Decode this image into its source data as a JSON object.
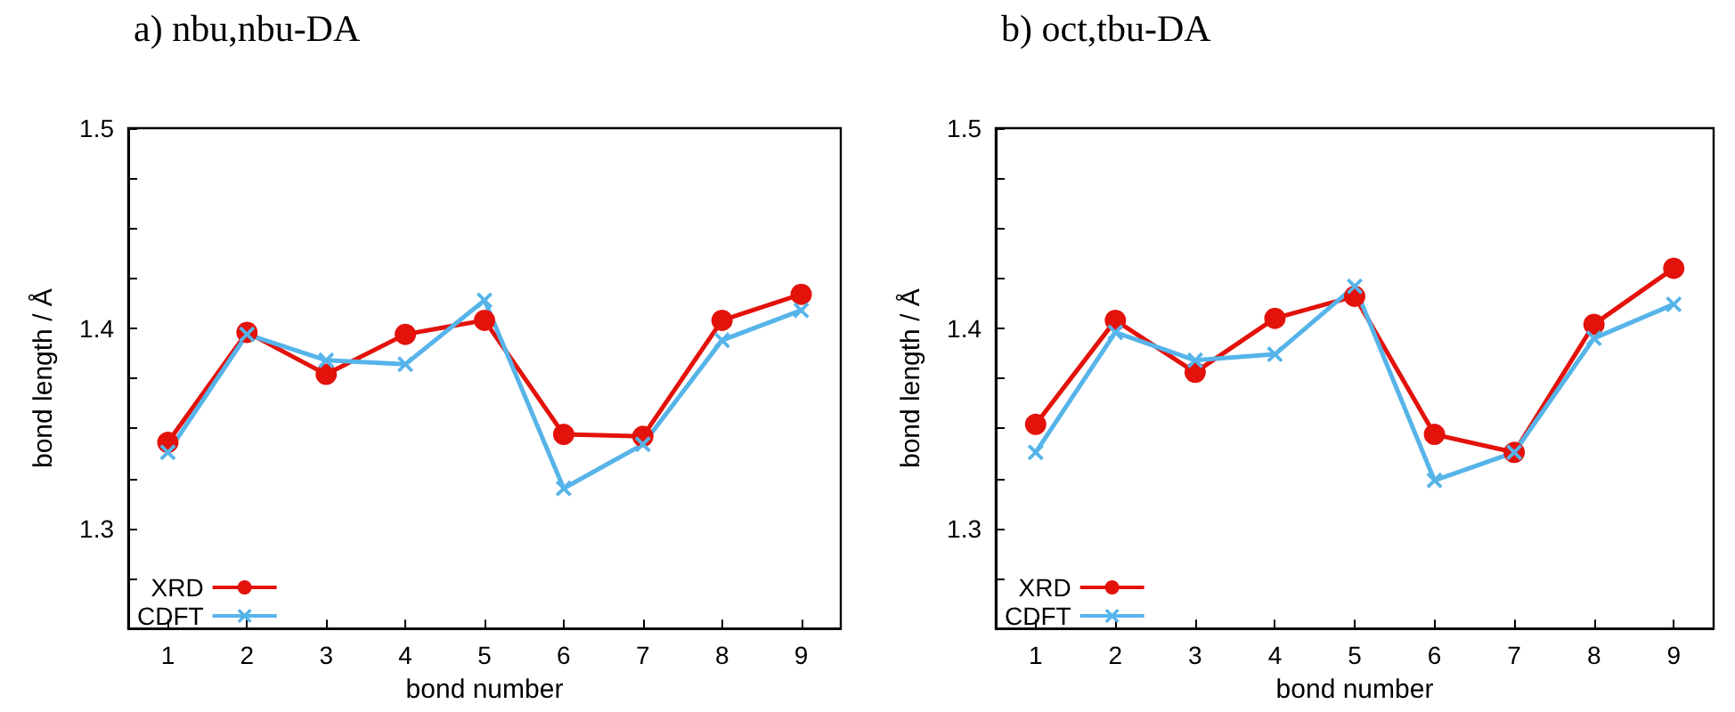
{
  "chart_data": [
    {
      "type": "line",
      "title": "a) nbu,nbu-DA",
      "xlabel": "bond number",
      "ylabel": "bond length / Å",
      "x": [
        1,
        2,
        3,
        4,
        5,
        6,
        7,
        8,
        9
      ],
      "xlim": [
        0.5,
        9.5
      ],
      "xticks": [
        1,
        2,
        3,
        4,
        5,
        6,
        7,
        8,
        9
      ],
      "ylim": [
        1.25,
        1.5
      ],
      "yticks": [
        {
          "value": 1.275,
          "label": null
        },
        1.3,
        {
          "value": 1.325,
          "label": null
        },
        {
          "value": 1.35,
          "label": null
        },
        {
          "value": 1.375,
          "label": null
        },
        1.4,
        {
          "value": 1.425,
          "label": null
        },
        {
          "value": 1.45,
          "label": null
        },
        {
          "value": 1.475,
          "label": null
        },
        1.5
      ],
      "grid": false,
      "legend": "bottom left",
      "series": [
        {
          "name": "XRD",
          "color": "#e3120b",
          "marker": "circle",
          "values": [
            1.343,
            1.398,
            1.377,
            1.397,
            1.404,
            1.347,
            1.346,
            1.404,
            1.417
          ]
        },
        {
          "name": "CDFT",
          "color": "#56b4e9",
          "marker": "cross",
          "values": [
            1.338,
            1.397,
            1.384,
            1.382,
            1.414,
            1.32,
            1.342,
            1.394,
            1.409
          ]
        }
      ]
    },
    {
      "type": "line",
      "title": "b) oct,tbu-DA",
      "xlabel": "bond number",
      "ylabel": "bond length / Å",
      "x": [
        1,
        2,
        3,
        4,
        5,
        6,
        7,
        8,
        9
      ],
      "xlim": [
        0.5,
        9.5
      ],
      "xticks": [
        1,
        2,
        3,
        4,
        5,
        6,
        7,
        8,
        9
      ],
      "ylim": [
        1.25,
        1.5
      ],
      "yticks": [
        {
          "value": 1.275,
          "label": null
        },
        1.3,
        {
          "value": 1.325,
          "label": null
        },
        {
          "value": 1.35,
          "label": null
        },
        {
          "value": 1.375,
          "label": null
        },
        1.4,
        {
          "value": 1.425,
          "label": null
        },
        {
          "value": 1.45,
          "label": null
        },
        {
          "value": 1.475,
          "label": null
        },
        1.5
      ],
      "grid": false,
      "legend": "bottom left",
      "series": [
        {
          "name": "XRD",
          "color": "#e3120b",
          "marker": "circle",
          "values": [
            1.352,
            1.404,
            1.378,
            1.405,
            1.416,
            1.347,
            1.338,
            1.402,
            1.43
          ]
        },
        {
          "name": "CDFT",
          "color": "#56b4e9",
          "marker": "cross",
          "values": [
            1.338,
            1.398,
            1.384,
            1.387,
            1.421,
            1.324,
            1.338,
            1.395,
            1.412
          ]
        }
      ]
    }
  ]
}
